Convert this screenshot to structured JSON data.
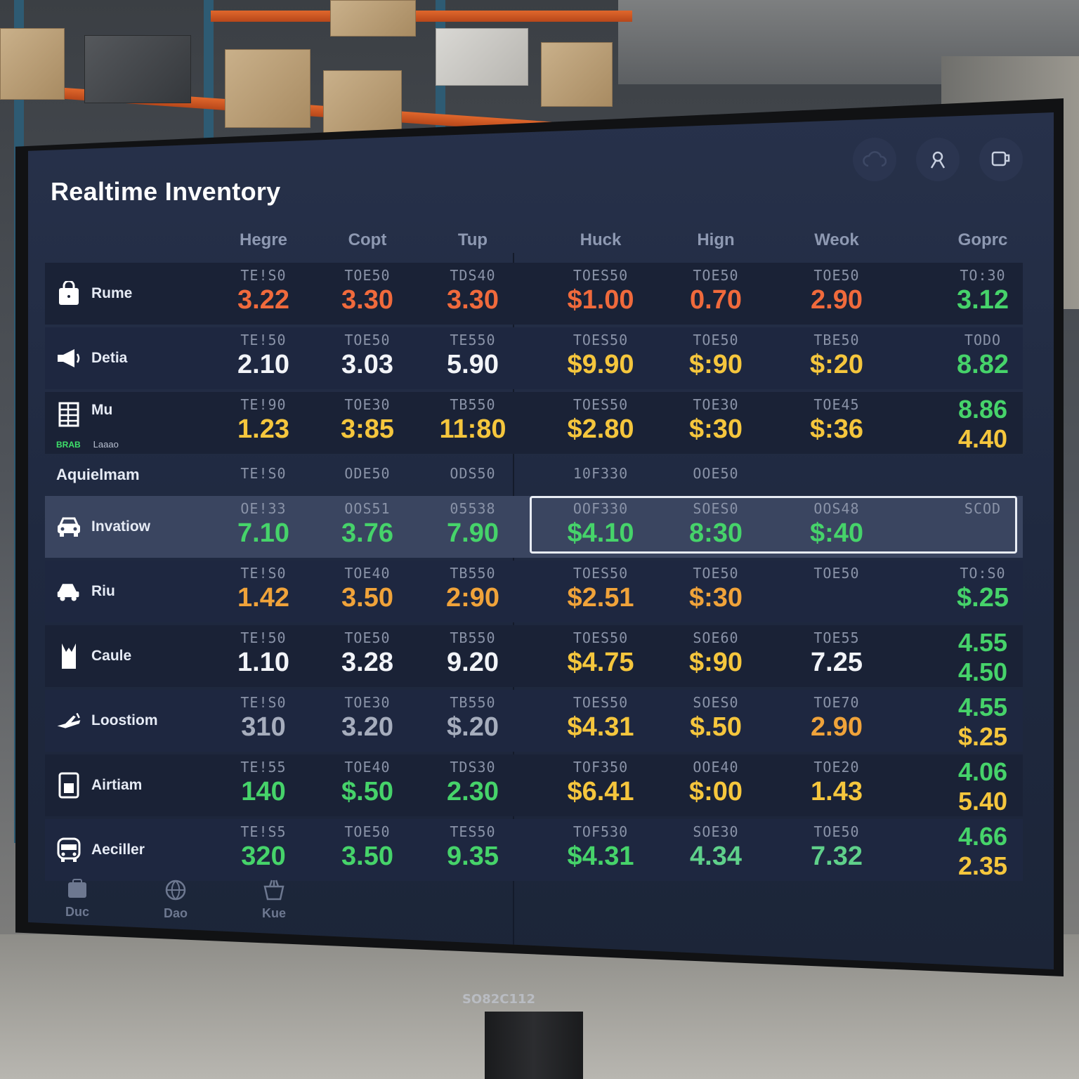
{
  "app": {
    "title": "Realtime Inventory"
  },
  "monitor_brand": "SO82C112",
  "top_icons": [
    "cloud-icon",
    "user-icon",
    "coffee-icon"
  ],
  "columns": [
    "Hegre",
    "Copt",
    "Tup",
    "Huck",
    "Hign",
    "Weok",
    "Goprc"
  ],
  "rows": [
    {
      "label": "Rume",
      "icon": "shopping-bag-icon",
      "cells": [
        {
          "code": "TE!S0",
          "val": "3.22",
          "c": "red"
        },
        {
          "code": "TOE50",
          "val": "3.30",
          "c": "red"
        },
        {
          "code": "TDS40",
          "val": "3.30",
          "c": "red"
        },
        {
          "code": "TOES50",
          "val": "$1.00",
          "c": "red"
        },
        {
          "code": "TOE50",
          "val": "0.70",
          "c": "red"
        },
        {
          "code": "TOE50",
          "val": "2.90",
          "c": "red"
        },
        {
          "code": "TO:30",
          "val": "3.12",
          "c": "green"
        }
      ]
    },
    {
      "label": "Detia",
      "icon": "megaphone-icon",
      "cells": [
        {
          "code": "TE!50",
          "val": "2.10",
          "c": "white"
        },
        {
          "code": "TOE50",
          "val": "3.03",
          "c": "white"
        },
        {
          "code": "TE550",
          "val": "5.90",
          "c": "white"
        },
        {
          "code": "TOES50",
          "val": "$9.90",
          "c": "yellow"
        },
        {
          "code": "TOE50",
          "val": "$:90",
          "c": "yellow"
        },
        {
          "code": "TBE50",
          "val": "$:20",
          "c": "yellow"
        },
        {
          "code": "TODO",
          "val": "8.82",
          "c": "green"
        }
      ]
    },
    {
      "label": "Mu",
      "sub_code": "BRAB",
      "sub_label": "Laaao",
      "icon": "grid-list-icon",
      "cells": [
        {
          "code": "TE!90",
          "val": "1.23",
          "c": "yellow"
        },
        {
          "code": "TOE30",
          "val": "3:85",
          "c": "yellow"
        },
        {
          "code": "TB550",
          "val": "11:80",
          "c": "yellow"
        },
        {
          "code": "TOES50",
          "val": "$2.80",
          "c": "yellow"
        },
        {
          "code": "TOE30",
          "val": "$:30",
          "c": "yellow"
        },
        {
          "code": "TOE45",
          "val": "$:36",
          "c": "yellow"
        },
        {
          "code": "",
          "val": "8.86",
          "val2": "4.40",
          "c": "green",
          "c2": "yellow"
        }
      ]
    },
    {
      "label": "Aquielmam",
      "section": true,
      "cells": [
        {
          "code": "TE!S0"
        },
        {
          "code": "ODE50"
        },
        {
          "code": "ODS50"
        },
        {
          "code": "10F330"
        },
        {
          "code": "OOE50"
        },
        {
          "code": ""
        },
        {
          "code": ""
        }
      ]
    },
    {
      "label": "Invatiow",
      "icon": "car-front-icon",
      "selected": true,
      "cells": [
        {
          "code": "OE!33",
          "val": "7.10",
          "c": "green"
        },
        {
          "code": "OOS51",
          "val": "3.76",
          "c": "green"
        },
        {
          "code": "05538",
          "val": "7.90",
          "c": "green"
        },
        {
          "code": "OOF330",
          "val": "$4.10",
          "c": "green"
        },
        {
          "code": "SOES0",
          "val": "8:30",
          "c": "green"
        },
        {
          "code": "OOS48",
          "val": "$:40",
          "c": "green"
        },
        {
          "code": "SCOD",
          "val": "",
          "c": "green"
        }
      ]
    },
    {
      "label": "Riu",
      "icon": "car-side-icon",
      "cells": [
        {
          "code": "TE!S0",
          "val": "1.42",
          "c": "orange"
        },
        {
          "code": "TOE40",
          "val": "3.50",
          "c": "orange"
        },
        {
          "code": "TB550",
          "val": "2:90",
          "c": "orange"
        },
        {
          "code": "TOES50",
          "val": "$2.51",
          "c": "orange"
        },
        {
          "code": "TOE50",
          "val": "$:30",
          "c": "orange"
        },
        {
          "code": "TOE50",
          "val": "",
          "c": "orange"
        },
        {
          "code": "TO:S0",
          "val": "$.25",
          "c": "green"
        }
      ]
    },
    {
      "label": "Caule",
      "icon": "tank-top-icon",
      "cells": [
        {
          "code": "TE!50",
          "val": "1.10",
          "c": "white"
        },
        {
          "code": "TOE50",
          "val": "3.28",
          "c": "white"
        },
        {
          "code": "TB550",
          "val": "9.20",
          "c": "white"
        },
        {
          "code": "TOES50",
          "val": "$4.75",
          "c": "yellow"
        },
        {
          "code": "SOE60",
          "val": "$:90",
          "c": "yellow"
        },
        {
          "code": "TOE55",
          "val": "7.25",
          "c": "white"
        },
        {
          "code": "",
          "val": "4.55",
          "val2": "4.50",
          "c": "green",
          "c2": "green"
        }
      ]
    },
    {
      "label": "Loostiom",
      "icon": "airplane-icon",
      "cells": [
        {
          "code": "TE!S0",
          "val": "310",
          "c": "gray"
        },
        {
          "code": "TOE30",
          "val": "3.20",
          "c": "gray"
        },
        {
          "code": "TB550",
          "val": "$.20",
          "c": "gray"
        },
        {
          "code": "TOES50",
          "val": "$4.31",
          "c": "yellow"
        },
        {
          "code": "SOES0",
          "val": "$.50",
          "c": "yellow"
        },
        {
          "code": "TOE70",
          "val": "2.90",
          "c": "orange"
        },
        {
          "code": "",
          "val": "4.55",
          "val2": "$.25",
          "c": "green",
          "c2": "yellow"
        }
      ]
    },
    {
      "label": "Airtiam",
      "icon": "document-icon",
      "cells": [
        {
          "code": "TE!55",
          "val": "140",
          "c": "green"
        },
        {
          "code": "TOE40",
          "val": "$.50",
          "c": "green"
        },
        {
          "code": "TDS30",
          "val": "2.30",
          "c": "green"
        },
        {
          "code": "TOF350",
          "val": "$6.41",
          "c": "yellow"
        },
        {
          "code": "OOE40",
          "val": "$:00",
          "c": "yellow"
        },
        {
          "code": "TOE20",
          "val": "1.43",
          "c": "yellow"
        },
        {
          "code": "",
          "val": "4.06",
          "val2": "5.40",
          "c": "green",
          "c2": "yellow"
        }
      ]
    },
    {
      "label": "Aeciller",
      "icon": "bus-icon",
      "cells": [
        {
          "code": "TE!S5",
          "val": "320",
          "c": "green"
        },
        {
          "code": "TOE50",
          "val": "3.50",
          "c": "green"
        },
        {
          "code": "TES50",
          "val": "9.35",
          "c": "green"
        },
        {
          "code": "TOF530",
          "val": "$4.31",
          "c": "green"
        },
        {
          "code": "SOE30",
          "val": "4.34",
          "c": "teal"
        },
        {
          "code": "TOE50",
          "val": "7.32",
          "c": "teal"
        },
        {
          "code": "",
          "val": "4.66",
          "val2": "2.35",
          "c": "green",
          "c2": "yellow"
        }
      ]
    }
  ],
  "bottom_nav": [
    {
      "label": "Duc",
      "icon": "box-icon"
    },
    {
      "label": "Dao",
      "icon": "globe-icon"
    },
    {
      "label": "Kue",
      "icon": "basket-icon"
    }
  ]
}
